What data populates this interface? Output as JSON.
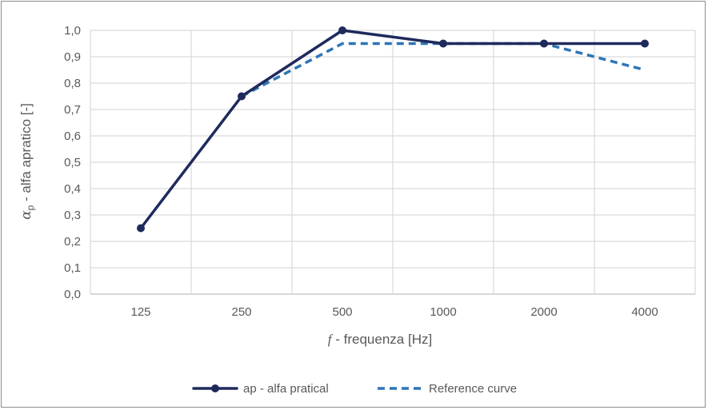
{
  "chart_data": {
    "type": "line",
    "categories": [
      "125",
      "250",
      "500",
      "1000",
      "2000",
      "4000"
    ],
    "series": [
      {
        "name": "ap - alfa pratical",
        "values": [
          0.25,
          0.75,
          1.0,
          0.95,
          0.95,
          0.95
        ],
        "color": "#1f2a5c",
        "style": "solid-with-markers"
      },
      {
        "name": "Reference curve",
        "values": [
          null,
          0.75,
          0.95,
          0.95,
          0.95,
          0.85
        ],
        "color": "#2e75b6",
        "style": "dashed"
      }
    ],
    "yticks": [
      "0,0",
      "0,1",
      "0,2",
      "0,3",
      "0,4",
      "0,5",
      "0,6",
      "0,7",
      "0,8",
      "0,9",
      "1,0"
    ],
    "ylim": [
      0,
      1.0
    ],
    "xlabel": {
      "italic_symbol": "f",
      "text": " - frequenza [Hz]"
    },
    "ylabel": {
      "symbol": "α",
      "subscript": "p",
      "text": " - alfa apratico [-]"
    },
    "grid": true,
    "legend_position": "bottom"
  }
}
